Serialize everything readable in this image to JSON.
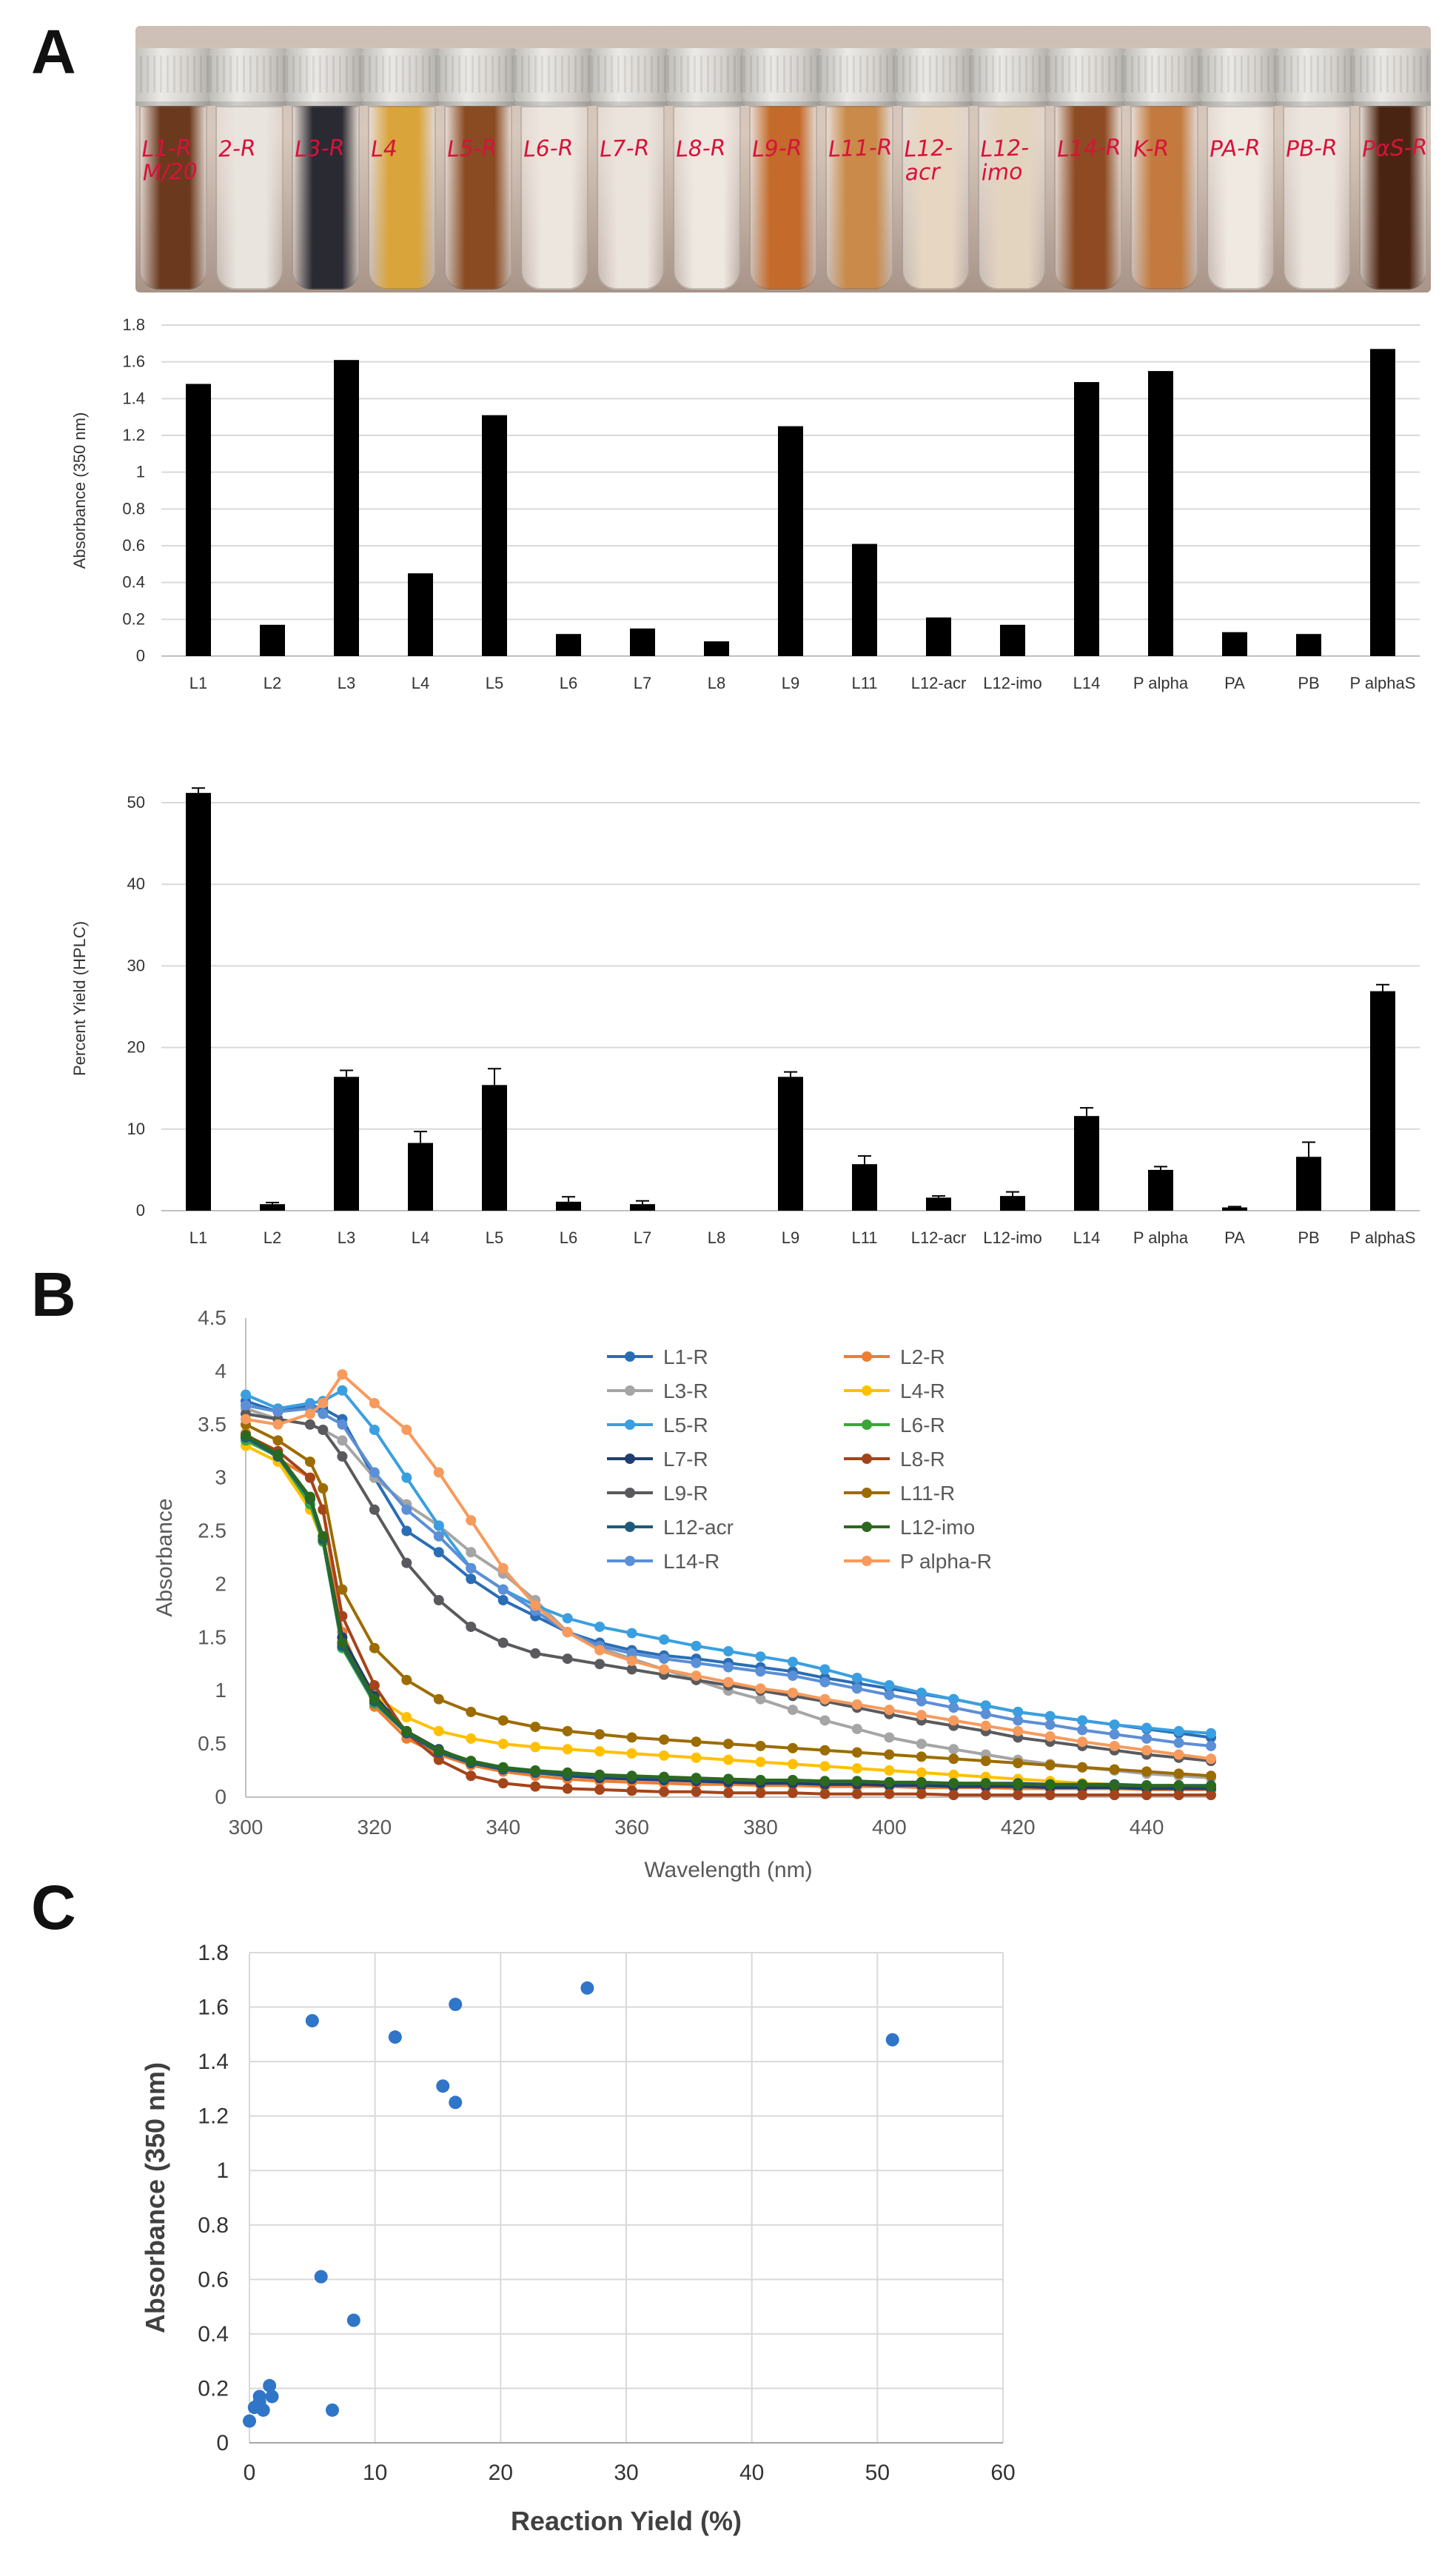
{
  "panel_letters": {
    "a": "A",
    "b": "B",
    "c": "C"
  },
  "tubes": [
    {
      "label": "L1-R\nM/20",
      "color": "#6b3a1e"
    },
    {
      "label": "2-R",
      "color": "#e9e4de"
    },
    {
      "label": "L3-R",
      "color": "#2a2a32"
    },
    {
      "label": "L4",
      "color": "#d9a43a"
    },
    {
      "label": "L5-R",
      "color": "#8a4a22"
    },
    {
      "label": "L6-R",
      "color": "#ece6df"
    },
    {
      "label": "L7-R",
      "color": "#ebe4dc"
    },
    {
      "label": "L8-R",
      "color": "#eee8e1"
    },
    {
      "label": "L9-R",
      "color": "#c46a2a"
    },
    {
      "label": "L11-R",
      "color": "#c98a4a"
    },
    {
      "label": "L12-\nacr",
      "color": "#e6d6c2"
    },
    {
      "label": "L12-\nimo",
      "color": "#e3d4c0"
    },
    {
      "label": "L14-R",
      "color": "#8e4a22"
    },
    {
      "label": "K-R",
      "color": "#c47a3e"
    },
    {
      "label": "PA-R",
      "color": "#efe9e2"
    },
    {
      "label": "PB-R",
      "color": "#ece5de"
    },
    {
      "label": "PαS-R",
      "color": "#4a2412"
    }
  ],
  "chart_data": [
    {
      "type": "bar",
      "id": "absorbance-bar",
      "title": "",
      "xlabel": "",
      "ylabel": "Absorbance (350 nm)",
      "ylim": [
        0,
        1.8
      ],
      "yticks": [
        "0",
        "0.2",
        "0.4",
        "0.6",
        "0.8",
        "1",
        "1.2",
        "1.4",
        "1.6",
        "1.8"
      ],
      "grid": true,
      "categories": [
        "L1",
        "L2",
        "L3",
        "L4",
        "L5",
        "L6",
        "L7",
        "L8",
        "L9",
        "L11",
        "L12-acr",
        "L12-imo",
        "L14",
        "P alpha",
        "PA",
        "PB",
        "P alphaS"
      ],
      "values": [
        1.48,
        0.17,
        1.61,
        0.45,
        1.31,
        0.12,
        0.15,
        0.08,
        1.25,
        0.61,
        0.21,
        0.17,
        1.49,
        1.55,
        0.13,
        0.12,
        1.67
      ]
    },
    {
      "type": "bar",
      "id": "yield-bar",
      "title": "",
      "xlabel": "",
      "ylabel": "Percent Yield (HPLC)",
      "ylim": [
        0,
        52
      ],
      "yticks": [
        "0",
        "10",
        "20",
        "30",
        "40",
        "50"
      ],
      "grid": true,
      "categories": [
        "L1",
        "L2",
        "L3",
        "L4",
        "L5",
        "L6",
        "L7",
        "L8",
        "L9",
        "L11",
        "L12-acr",
        "L12-imo",
        "L14",
        "P alpha",
        "PA",
        "PB",
        "P alphaS"
      ],
      "values": [
        51.2,
        0.8,
        16.4,
        8.3,
        15.4,
        1.1,
        0.8,
        0,
        16.4,
        5.7,
        1.6,
        1.8,
        11.6,
        5.0,
        0.4,
        6.6,
        26.9
      ],
      "errors": [
        0.6,
        0.2,
        0.8,
        1.4,
        2.0,
        0.6,
        0.4,
        0,
        0.6,
        1.0,
        0.2,
        0.5,
        1.0,
        0.4,
        0.1,
        1.8,
        0.8
      ]
    },
    {
      "type": "line",
      "id": "spectra",
      "title": "",
      "xlabel": "Wavelength (nm)",
      "ylabel": "Absorbance",
      "xlim": [
        300,
        450
      ],
      "ylim": [
        0,
        4.5
      ],
      "xticks": [
        "300",
        "320",
        "340",
        "360",
        "380",
        "400",
        "420",
        "440"
      ],
      "yticks": [
        "0",
        "0.5",
        "1",
        "1.5",
        "2",
        "2.5",
        "3",
        "3.5",
        "4",
        "4.5"
      ],
      "x": [
        300,
        305,
        310,
        312,
        315,
        320,
        325,
        330,
        335,
        340,
        345,
        350,
        355,
        360,
        365,
        370,
        375,
        380,
        385,
        390,
        395,
        400,
        405,
        410,
        415,
        420,
        425,
        430,
        435,
        440,
        445,
        450
      ],
      "series": [
        {
          "name": "L1-R",
          "color": "#2a6db5",
          "values": [
            3.72,
            3.62,
            3.68,
            3.65,
            3.55,
            3.0,
            2.5,
            2.3,
            2.05,
            1.85,
            1.7,
            1.55,
            1.45,
            1.38,
            1.33,
            1.3,
            1.26,
            1.22,
            1.18,
            1.12,
            1.07,
            1.02,
            0.97,
            0.92,
            0.86,
            0.8,
            0.76,
            0.72,
            0.68,
            0.64,
            0.6,
            0.56
          ]
        },
        {
          "name": "L2-R",
          "color": "#ee7d31",
          "values": [
            3.42,
            3.18,
            3.0,
            2.7,
            1.55,
            0.85,
            0.55,
            0.4,
            0.3,
            0.24,
            0.2,
            0.17,
            0.15,
            0.14,
            0.13,
            0.12,
            0.12,
            0.11,
            0.11,
            0.1,
            0.1,
            0.1,
            0.09,
            0.09,
            0.09,
            0.08,
            0.08,
            0.08,
            0.08,
            0.07,
            0.07,
            0.07
          ]
        },
        {
          "name": "L3-R",
          "color": "#a5a5a5",
          "values": [
            3.65,
            3.55,
            3.5,
            3.45,
            3.35,
            3.0,
            2.75,
            2.55,
            2.3,
            2.1,
            1.85,
            1.55,
            1.4,
            1.3,
            1.2,
            1.1,
            1.0,
            0.92,
            0.82,
            0.72,
            0.64,
            0.56,
            0.5,
            0.45,
            0.4,
            0.35,
            0.31,
            0.28,
            0.25,
            0.22,
            0.2,
            0.18
          ]
        },
        {
          "name": "L4-R",
          "color": "#ffc000",
          "values": [
            3.3,
            3.15,
            2.7,
            2.4,
            1.45,
            0.95,
            0.75,
            0.62,
            0.55,
            0.5,
            0.47,
            0.45,
            0.43,
            0.41,
            0.39,
            0.37,
            0.35,
            0.33,
            0.31,
            0.29,
            0.27,
            0.25,
            0.23,
            0.21,
            0.19,
            0.17,
            0.15,
            0.13,
            0.12,
            0.1,
            0.09,
            0.08
          ]
        },
        {
          "name": "L5-R",
          "color": "#3a9fe0",
          "values": [
            3.78,
            3.65,
            3.7,
            3.72,
            3.82,
            3.45,
            3.0,
            2.55,
            2.15,
            1.95,
            1.8,
            1.68,
            1.6,
            1.54,
            1.48,
            1.42,
            1.37,
            1.32,
            1.27,
            1.2,
            1.12,
            1.05,
            0.98,
            0.92,
            0.86,
            0.8,
            0.76,
            0.72,
            0.68,
            0.65,
            0.62,
            0.6
          ]
        },
        {
          "name": "L6-R",
          "color": "#3aa63a",
          "values": [
            3.35,
            3.2,
            2.75,
            2.4,
            1.4,
            0.88,
            0.6,
            0.42,
            0.32,
            0.27,
            0.24,
            0.21,
            0.19,
            0.18,
            0.17,
            0.16,
            0.15,
            0.14,
            0.14,
            0.13,
            0.13,
            0.12,
            0.12,
            0.11,
            0.11,
            0.1,
            0.1,
            0.1,
            0.09,
            0.09,
            0.09,
            0.08
          ]
        },
        {
          "name": "L7-R",
          "color": "#1f3f6e",
          "values": [
            3.38,
            3.2,
            2.8,
            2.45,
            1.5,
            0.95,
            0.62,
            0.45,
            0.33,
            0.27,
            0.23,
            0.2,
            0.18,
            0.17,
            0.16,
            0.15,
            0.14,
            0.13,
            0.13,
            0.12,
            0.12,
            0.11,
            0.11,
            0.1,
            0.1,
            0.1,
            0.09,
            0.09,
            0.09,
            0.08,
            0.08,
            0.08
          ]
        },
        {
          "name": "L8-R",
          "color": "#a5441a",
          "values": [
            3.4,
            3.25,
            3.0,
            2.7,
            1.7,
            1.05,
            0.6,
            0.35,
            0.2,
            0.13,
            0.1,
            0.08,
            0.07,
            0.06,
            0.05,
            0.05,
            0.04,
            0.04,
            0.04,
            0.03,
            0.03,
            0.03,
            0.03,
            0.02,
            0.02,
            0.02,
            0.02,
            0.02,
            0.02,
            0.02,
            0.02,
            0.02
          ]
        },
        {
          "name": "L9-R",
          "color": "#5a5a5e",
          "values": [
            3.6,
            3.55,
            3.5,
            3.45,
            3.2,
            2.7,
            2.2,
            1.85,
            1.6,
            1.45,
            1.35,
            1.3,
            1.25,
            1.2,
            1.15,
            1.1,
            1.05,
            1.0,
            0.95,
            0.9,
            0.84,
            0.78,
            0.72,
            0.67,
            0.62,
            0.56,
            0.52,
            0.48,
            0.44,
            0.4,
            0.37,
            0.34
          ]
        },
        {
          "name": "L11-R",
          "color": "#9c6c00",
          "values": [
            3.5,
            3.35,
            3.15,
            2.9,
            1.95,
            1.4,
            1.1,
            0.92,
            0.8,
            0.72,
            0.66,
            0.62,
            0.59,
            0.56,
            0.54,
            0.52,
            0.5,
            0.48,
            0.46,
            0.44,
            0.42,
            0.4,
            0.38,
            0.36,
            0.34,
            0.32,
            0.3,
            0.28,
            0.26,
            0.24,
            0.22,
            0.2
          ]
        },
        {
          "name": "L12-acr",
          "color": "#1d5b7c",
          "values": [
            3.38,
            3.2,
            2.8,
            2.42,
            1.42,
            0.9,
            0.6,
            0.42,
            0.32,
            0.26,
            0.23,
            0.21,
            0.2,
            0.19,
            0.18,
            0.17,
            0.17,
            0.16,
            0.16,
            0.15,
            0.15,
            0.14,
            0.14,
            0.13,
            0.13,
            0.13,
            0.12,
            0.12,
            0.12,
            0.11,
            0.11,
            0.11
          ]
        },
        {
          "name": "L12-imo",
          "color": "#2b6a1e",
          "values": [
            3.4,
            3.22,
            2.82,
            2.45,
            1.45,
            0.92,
            0.62,
            0.44,
            0.34,
            0.28,
            0.25,
            0.23,
            0.21,
            0.2,
            0.19,
            0.18,
            0.17,
            0.16,
            0.16,
            0.15,
            0.15,
            0.14,
            0.14,
            0.13,
            0.13,
            0.12,
            0.12,
            0.12,
            0.11,
            0.11,
            0.11,
            0.1
          ]
        },
        {
          "name": "L14-R",
          "color": "#5b8fd6",
          "values": [
            3.68,
            3.62,
            3.65,
            3.6,
            3.5,
            3.05,
            2.7,
            2.45,
            2.15,
            1.95,
            1.75,
            1.55,
            1.42,
            1.35,
            1.3,
            1.26,
            1.22,
            1.18,
            1.14,
            1.08,
            1.02,
            0.96,
            0.9,
            0.84,
            0.78,
            0.72,
            0.68,
            0.63,
            0.59,
            0.55,
            0.51,
            0.48
          ]
        },
        {
          "name": "P alpha-R",
          "color": "#f79a5c",
          "values": [
            3.55,
            3.5,
            3.6,
            3.7,
            3.97,
            3.7,
            3.45,
            3.05,
            2.6,
            2.15,
            1.8,
            1.55,
            1.38,
            1.28,
            1.2,
            1.14,
            1.08,
            1.02,
            0.98,
            0.92,
            0.87,
            0.82,
            0.77,
            0.72,
            0.67,
            0.62,
            0.57,
            0.52,
            0.48,
            0.44,
            0.4,
            0.36
          ]
        }
      ]
    },
    {
      "type": "scatter",
      "id": "yield-vs-absorbance",
      "title": "",
      "xlabel": "Reaction Yield (%)",
      "ylabel": "Absorbance (350 nm)",
      "xlim": [
        0,
        60
      ],
      "ylim": [
        0,
        1.8
      ],
      "xticks": [
        "0",
        "10",
        "20",
        "30",
        "40",
        "50",
        "60"
      ],
      "yticks": [
        "0",
        "0.2",
        "0.4",
        "0.6",
        "0.8",
        "1",
        "1.2",
        "1.4",
        "1.6",
        "1.8"
      ],
      "grid": true,
      "points": [
        {
          "x": 51.2,
          "y": 1.48
        },
        {
          "x": 0.8,
          "y": 0.17
        },
        {
          "x": 16.4,
          "y": 1.61
        },
        {
          "x": 8.3,
          "y": 0.45
        },
        {
          "x": 15.4,
          "y": 1.31
        },
        {
          "x": 1.1,
          "y": 0.12
        },
        {
          "x": 0.8,
          "y": 0.15
        },
        {
          "x": 0.0,
          "y": 0.08
        },
        {
          "x": 16.4,
          "y": 1.25
        },
        {
          "x": 5.7,
          "y": 0.61
        },
        {
          "x": 1.6,
          "y": 0.21
        },
        {
          "x": 1.8,
          "y": 0.17
        },
        {
          "x": 11.6,
          "y": 1.49
        },
        {
          "x": 5.0,
          "y": 1.55
        },
        {
          "x": 0.4,
          "y": 0.13
        },
        {
          "x": 6.6,
          "y": 0.12
        },
        {
          "x": 26.9,
          "y": 1.67
        }
      ],
      "color": "#2f75c8"
    }
  ]
}
